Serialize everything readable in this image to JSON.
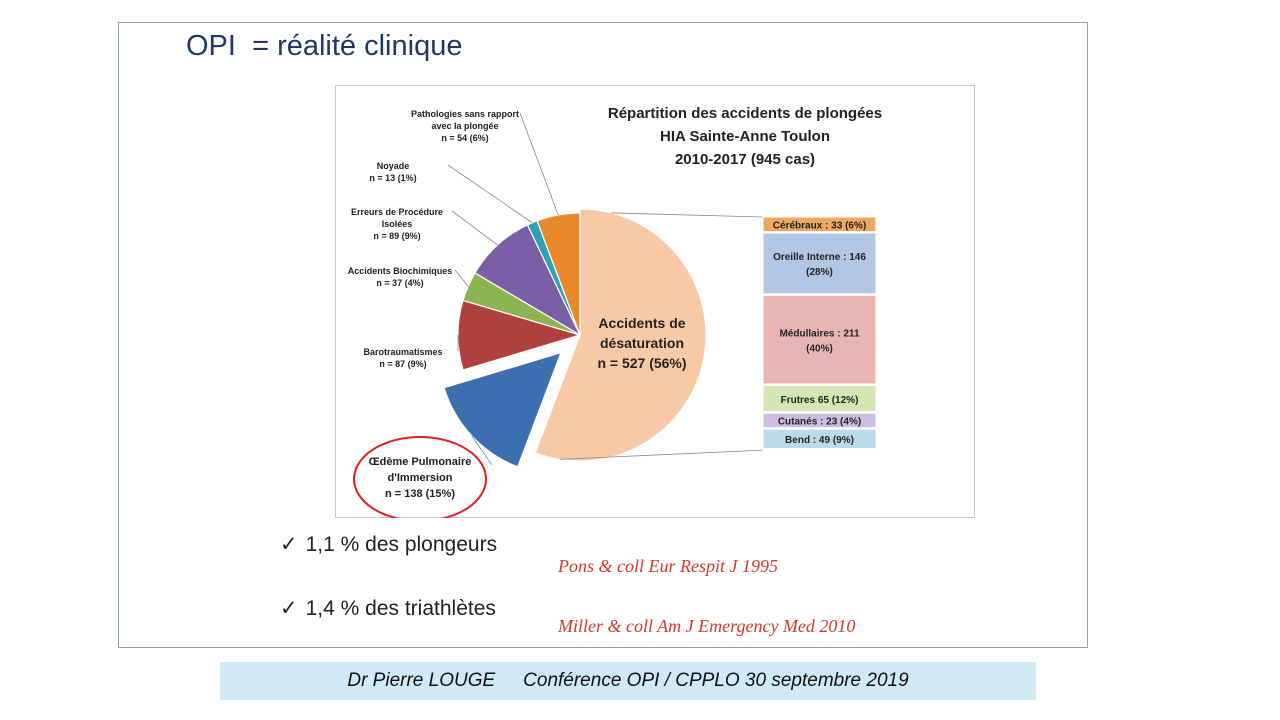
{
  "slide": {
    "title": "OPI  = réalité clinique"
  },
  "chart_data": {
    "type": "pie",
    "title": [
      "Répartition des accidents de plongées",
      "HIA Sainte-Anne Toulon",
      "2010-2017 (945 cas)"
    ],
    "total": 945,
    "slices": [
      {
        "label": [
          "Accidents de",
          "désaturation",
          "n = 527  (56%)"
        ],
        "value": 527,
        "color": "#f8c9a6"
      },
      {
        "label": [
          "Œdème Pulmonaire",
          "d'Immersion",
          "n = 138 (15%)"
        ],
        "value": 138,
        "color": "#3b6fb0",
        "exploded": true,
        "highlighted": true
      },
      {
        "label": [
          "Barotraumatismes",
          "n = 87 (9%)"
        ],
        "value": 87,
        "color": "#b0403e"
      },
      {
        "label": [
          "Accidents Biochimiques",
          "n = 37 (4%)"
        ],
        "value": 37,
        "color": "#8cb450"
      },
      {
        "label": [
          "Erreurs de Procédure",
          "Isolées",
          "n = 89 (9%)"
        ],
        "value": 89,
        "color": "#7a5fa6"
      },
      {
        "label": [
          "Noyade",
          "n = 13 (1%)"
        ],
        "value": 13,
        "color": "#2fa0b8"
      },
      {
        "label": [
          "Pathologies sans rapport",
          "avec la plongée",
          "n = 54 (6%)"
        ],
        "value": 54,
        "color": "#e8892a"
      }
    ],
    "breakdown": {
      "of": "Accidents de désaturation",
      "items": [
        {
          "label": [
            "Cérébraux : 33 (6%)"
          ],
          "value": 33,
          "color": "#f0a860"
        },
        {
          "label": [
            "Oreille Interne : 146",
            "(28%)"
          ],
          "value": 146,
          "color": "#b3c6e4"
        },
        {
          "label": [
            "Médullaires : 211",
            "(40%)"
          ],
          "value": 211,
          "color": "#eab4b4"
        },
        {
          "label": [
            "Frutres 65 (12%)"
          ],
          "value": 65,
          "color": "#d4e6b4"
        },
        {
          "label": [
            "Cutanés : 23 (4%)"
          ],
          "value": 23,
          "color": "#cdbde0"
        },
        {
          "label": [
            "Bend : 49 (9%)"
          ],
          "value": 49,
          "color": "#b8dcea"
        }
      ]
    }
  },
  "bullets": [
    {
      "text": "1,1 % des plongeurs",
      "ref": "Pons & coll Eur Respit J 1995"
    },
    {
      "text": "1,4 % des triathlètes",
      "ref": "Miller & coll Am J Emergency Med 2010"
    }
  ],
  "footer": {
    "author": "Dr Pierre LOUGE",
    "event": "Conférence  OPI / CPPLO 30 septembre 2019"
  }
}
